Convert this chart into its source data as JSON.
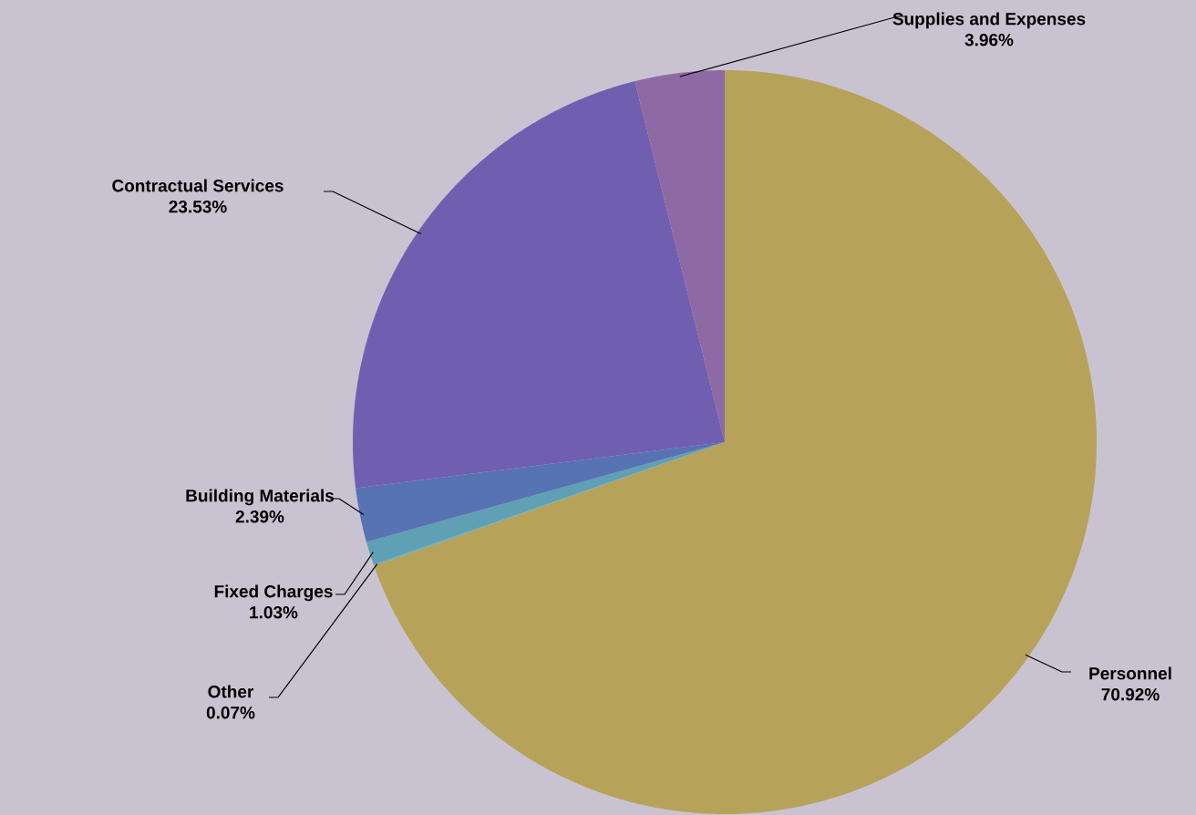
{
  "chart_data": {
    "type": "pie",
    "categories": [
      "Personnel",
      "Other",
      "Fixed Charges",
      "Building Materials",
      "Contractual Services",
      "Supplies and Expenses"
    ],
    "values": [
      70.92,
      0.07,
      1.03,
      2.39,
      23.53,
      3.96
    ],
    "value_labels": [
      "70.92%",
      "0.07%",
      "1.03%",
      "2.39%",
      "23.53%",
      "3.96%"
    ],
    "colors": [
      "#b7a25a",
      "#6fb0bc",
      "#5fa0b4",
      "#5873b4",
      "#705fb0",
      "#8e6aa4"
    ]
  }
}
